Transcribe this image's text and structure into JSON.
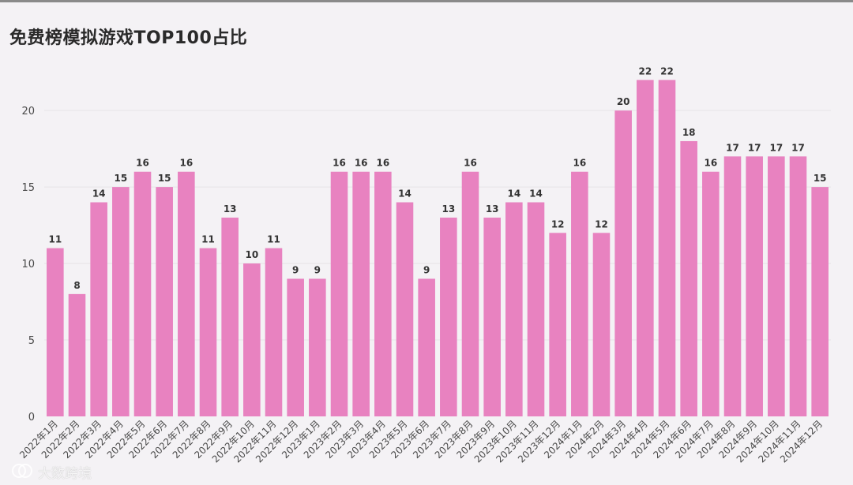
{
  "title": "免费榜模拟游戏TOP100占比",
  "watermark": "大数跨境",
  "colors": {
    "bar": "#e882c0",
    "grid": "#e6e4e8",
    "tick_text": "#4a4a4a",
    "label_text": "#333333"
  },
  "chart_data": {
    "type": "bar",
    "title": "免费榜模拟游戏TOP100占比",
    "xlabel": "",
    "ylabel": "",
    "ylim": [
      0,
      23
    ],
    "yticks": [
      0,
      5,
      10,
      15,
      20
    ],
    "grid": true,
    "categories": [
      "2022年1月",
      "2022年2月",
      "2022年3月",
      "2022年4月",
      "2022年5月",
      "2022年6月",
      "2022年7月",
      "2022年8月",
      "2022年9月",
      "2022年10月",
      "2022年11月",
      "2022年12月",
      "2023年1月",
      "2023年2月",
      "2023年3月",
      "2023年4月",
      "2023年5月",
      "2023年6月",
      "2023年7月",
      "2023年8月",
      "2023年9月",
      "2023年10月",
      "2023年11月",
      "2023年12月",
      "2024年1月",
      "2024年2月",
      "2024年3月",
      "2024年4月",
      "2024年5月",
      "2024年6月",
      "2024年7月",
      "2024年8月",
      "2024年9月",
      "2024年10月",
      "2024年11月",
      "2024年12月"
    ],
    "values": [
      11,
      8,
      14,
      15,
      16,
      15,
      16,
      11,
      13,
      10,
      11,
      9,
      9,
      16,
      16,
      16,
      14,
      9,
      13,
      16,
      13,
      14,
      14,
      12,
      16,
      12,
      20,
      22,
      22,
      18,
      16,
      17,
      17,
      17,
      17,
      15
    ]
  }
}
